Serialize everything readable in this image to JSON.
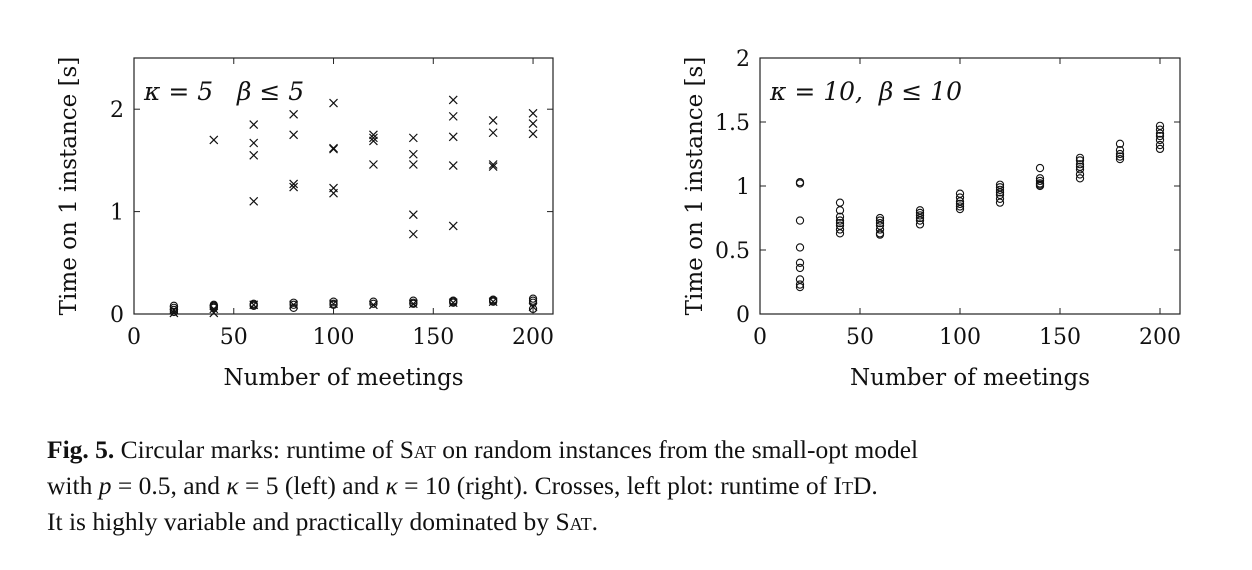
{
  "chart_data": [
    {
      "type": "scatter",
      "annotation": "κ = 5   β ≤ 5",
      "xlabel": "Number of meetings",
      "ylabel": "Time on 1 instance [s]",
      "xlim": [
        0,
        210
      ],
      "ylim": [
        0,
        2.5
      ],
      "xticks": [
        0,
        50,
        100,
        150,
        200
      ],
      "yticks": [
        0,
        1,
        2
      ],
      "grid": false,
      "series": [
        {
          "marker": "circle",
          "points": [
            [
              20,
              0.08
            ],
            [
              20,
              0.06
            ],
            [
              20,
              0.04
            ],
            [
              20,
              0.02
            ],
            [
              40,
              0.09
            ],
            [
              40,
              0.08
            ],
            [
              40,
              0.07
            ],
            [
              40,
              0.06
            ],
            [
              60,
              0.1
            ],
            [
              60,
              0.09
            ],
            [
              60,
              0.08
            ],
            [
              80,
              0.11
            ],
            [
              80,
              0.09
            ],
            [
              80,
              0.06
            ],
            [
              100,
              0.12
            ],
            [
              100,
              0.1
            ],
            [
              100,
              0.09
            ],
            [
              120,
              0.12
            ],
            [
              120,
              0.1
            ],
            [
              140,
              0.13
            ],
            [
              140,
              0.11
            ],
            [
              140,
              0.1
            ],
            [
              160,
              0.13
            ],
            [
              160,
              0.12
            ],
            [
              160,
              0.11
            ],
            [
              180,
              0.14
            ],
            [
              180,
              0.13
            ],
            [
              180,
              0.12
            ],
            [
              200,
              0.15
            ],
            [
              200,
              0.13
            ],
            [
              200,
              0.11
            ],
            [
              200,
              0.05
            ]
          ]
        },
        {
          "marker": "cross",
          "points": [
            [
              20,
              0.04
            ],
            [
              20,
              0.01
            ],
            [
              40,
              1.7
            ],
            [
              40,
              0.05
            ],
            [
              40,
              0.01
            ],
            [
              60,
              1.85
            ],
            [
              60,
              1.67
            ],
            [
              60,
              1.55
            ],
            [
              60,
              1.1
            ],
            [
              60,
              0.09
            ],
            [
              80,
              1.95
            ],
            [
              80,
              1.75
            ],
            [
              80,
              1.27
            ],
            [
              80,
              1.24
            ],
            [
              80,
              0.09
            ],
            [
              100,
              2.06
            ],
            [
              100,
              1.62
            ],
            [
              100,
              1.61
            ],
            [
              100,
              1.23
            ],
            [
              100,
              1.18
            ],
            [
              100,
              0.1
            ],
            [
              120,
              1.75
            ],
            [
              120,
              1.72
            ],
            [
              120,
              1.69
            ],
            [
              120,
              1.46
            ],
            [
              120,
              0.09
            ],
            [
              140,
              1.72
            ],
            [
              140,
              1.56
            ],
            [
              140,
              1.46
            ],
            [
              140,
              0.97
            ],
            [
              140,
              0.78
            ],
            [
              140,
              0.1
            ],
            [
              160,
              2.09
            ],
            [
              160,
              1.93
            ],
            [
              160,
              1.73
            ],
            [
              160,
              1.45
            ],
            [
              160,
              0.86
            ],
            [
              160,
              0.11
            ],
            [
              180,
              1.89
            ],
            [
              180,
              1.77
            ],
            [
              180,
              1.46
            ],
            [
              180,
              1.44
            ],
            [
              180,
              0.12
            ],
            [
              200,
              1.96
            ],
            [
              200,
              1.86
            ],
            [
              200,
              1.76
            ],
            [
              200,
              0.07
            ]
          ]
        }
      ]
    },
    {
      "type": "scatter",
      "annotation": "κ = 10,  β ≤ 10",
      "xlabel": "Number of meetings",
      "ylabel": "Time on 1 instance [s]",
      "xlim": [
        0,
        210
      ],
      "ylim": [
        0,
        2
      ],
      "xticks": [
        0,
        50,
        100,
        150,
        200
      ],
      "yticks": [
        0,
        0.5,
        1,
        1.5,
        2
      ],
      "grid": false,
      "series": [
        {
          "marker": "circle",
          "points": [
            [
              20,
              1.03
            ],
            [
              20,
              1.02
            ],
            [
              20,
              0.73
            ],
            [
              20,
              0.52
            ],
            [
              20,
              0.4
            ],
            [
              20,
              0.36
            ],
            [
              20,
              0.27
            ],
            [
              20,
              0.23
            ],
            [
              20,
              0.21
            ],
            [
              40,
              0.87
            ],
            [
              40,
              0.81
            ],
            [
              40,
              0.76
            ],
            [
              40,
              0.73
            ],
            [
              40,
              0.71
            ],
            [
              40,
              0.69
            ],
            [
              40,
              0.66
            ],
            [
              40,
              0.63
            ],
            [
              60,
              0.75
            ],
            [
              60,
              0.73
            ],
            [
              60,
              0.71
            ],
            [
              60,
              0.69
            ],
            [
              60,
              0.66
            ],
            [
              60,
              0.63
            ],
            [
              60,
              0.62
            ],
            [
              80,
              0.81
            ],
            [
              80,
              0.79
            ],
            [
              80,
              0.77
            ],
            [
              80,
              0.75
            ],
            [
              80,
              0.73
            ],
            [
              80,
              0.7
            ],
            [
              100,
              0.94
            ],
            [
              100,
              0.91
            ],
            [
              100,
              0.88
            ],
            [
              100,
              0.86
            ],
            [
              100,
              0.84
            ],
            [
              100,
              0.82
            ],
            [
              120,
              1.01
            ],
            [
              120,
              0.99
            ],
            [
              120,
              0.97
            ],
            [
              120,
              0.95
            ],
            [
              120,
              0.93
            ],
            [
              120,
              0.9
            ],
            [
              120,
              0.87
            ],
            [
              140,
              1.14
            ],
            [
              140,
              1.06
            ],
            [
              140,
              1.04
            ],
            [
              140,
              1.02
            ],
            [
              140,
              1.01
            ],
            [
              140,
              1.0
            ],
            [
              160,
              1.22
            ],
            [
              160,
              1.2
            ],
            [
              160,
              1.17
            ],
            [
              160,
              1.15
            ],
            [
              160,
              1.13
            ],
            [
              160,
              1.09
            ],
            [
              160,
              1.06
            ],
            [
              180,
              1.33
            ],
            [
              180,
              1.28
            ],
            [
              180,
              1.25
            ],
            [
              180,
              1.23
            ],
            [
              180,
              1.21
            ],
            [
              200,
              1.47
            ],
            [
              200,
              1.44
            ],
            [
              200,
              1.41
            ],
            [
              200,
              1.39
            ],
            [
              200,
              1.36
            ],
            [
              200,
              1.32
            ],
            [
              200,
              1.29
            ]
          ]
        }
      ]
    }
  ],
  "caption": {
    "label": "Fig. 5.",
    "line1": "Circular marks: runtime of ",
    "sat1": "Sat",
    "line1b": " on random instances from the small-opt model",
    "line2a": "with ",
    "p_var": "p",
    "line2b": " = 0.5, and ",
    "kappa1": "κ",
    "line2c": " = 5 (left) and ",
    "kappa2": "κ",
    "line2d": " = 10 (right). Crosses, left plot: runtime of ",
    "itd": "ItD",
    "line2e": ".",
    "line3a": "It is highly variable and practically dominated by ",
    "sat2": "Sat",
    "line3b": "."
  }
}
